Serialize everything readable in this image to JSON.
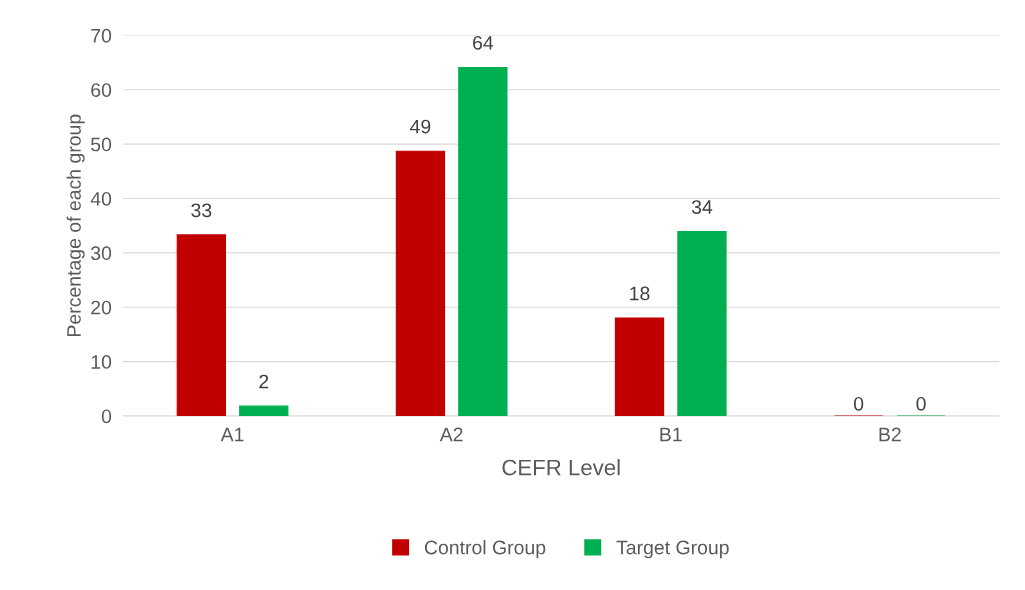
{
  "chart_data": {
    "type": "bar",
    "xlabel": "CEFR Level",
    "ylabel": "Percentage of each group",
    "categories": [
      "A1",
      "A2",
      "B1",
      "B2"
    ],
    "series": [
      {
        "name": "Control Group",
        "color": "#c00000",
        "values": [
          33.3,
          48.7,
          18,
          0
        ],
        "value_labels": [
          "33",
          "49",
          "18",
          "0"
        ]
      },
      {
        "name": "Target Group",
        "color": "#00b050",
        "values": [
          1.8,
          64.1,
          33.9,
          0
        ],
        "value_labels": [
          "2",
          "64",
          "34",
          "0"
        ]
      }
    ],
    "ylim": [
      0,
      70
    ],
    "yticks": [
      0,
      10,
      20,
      30,
      40,
      50,
      60,
      70
    ],
    "grid": "y",
    "legend": "bottom"
  }
}
